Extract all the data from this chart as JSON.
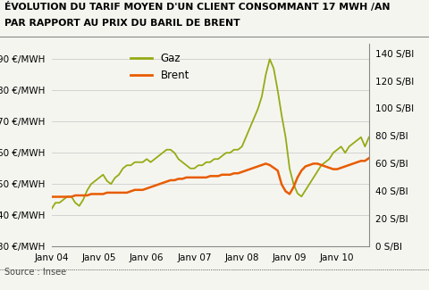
{
  "title_line1": "ÉVOLUTION DU TARIF MOYEN D'UN CLIENT CONSOMMANT 17 MWH /AN",
  "title_line2": "PAR RAPPORT AU PRIX DU BARIL DE BRENT",
  "source": "Source : Insee",
  "left_yticks": [
    30,
    40,
    50,
    60,
    70,
    80,
    90
  ],
  "right_yticks": [
    0,
    20,
    40,
    60,
    80,
    100,
    120,
    140
  ],
  "left_ylim": [
    30,
    95
  ],
  "right_ylim": [
    0,
    147
  ],
  "xtick_labels": [
    "Janv 04",
    "Janv 05",
    "Janv 06",
    "Janv 07",
    "Janv 08",
    "Janv 09",
    "Janv 10"
  ],
  "gaz_color": "#96ab14",
  "brent_color": "#e85c00",
  "background_color": "#f5f5f0",
  "grid_color": "#cccccc",
  "gaz_vals": [
    42,
    44,
    44,
    45,
    46,
    46,
    44,
    43,
    45,
    48,
    50,
    51,
    52,
    53,
    51,
    50,
    52,
    53,
    55,
    56,
    56,
    57,
    57,
    57,
    58,
    57,
    58,
    59,
    60,
    61,
    61,
    60,
    58,
    57,
    56,
    55,
    55,
    56,
    56,
    57,
    57,
    58,
    58,
    59,
    60,
    60,
    61,
    61,
    62,
    65,
    68,
    71,
    74,
    78,
    85,
    90,
    87,
    80,
    72,
    65,
    55,
    50,
    47,
    46,
    48,
    50,
    52,
    54,
    56,
    57,
    58,
    60,
    61,
    62,
    60,
    62,
    63,
    64,
    65,
    62,
    65
  ],
  "brent_vals": [
    36,
    36,
    36,
    36,
    36,
    36,
    37,
    37,
    37,
    37,
    38,
    38,
    38,
    38,
    39,
    39,
    39,
    39,
    39,
    39,
    40,
    41,
    41,
    41,
    42,
    43,
    44,
    45,
    46,
    47,
    48,
    48,
    49,
    49,
    50,
    50,
    50,
    50,
    50,
    50,
    51,
    51,
    51,
    52,
    52,
    52,
    53,
    53,
    54,
    55,
    56,
    57,
    58,
    59,
    60,
    59,
    57,
    55,
    45,
    40,
    38,
    43,
    50,
    55,
    58,
    59,
    60,
    60,
    59,
    58,
    57,
    56,
    56,
    57,
    58,
    59,
    60,
    61,
    62,
    62,
    64
  ]
}
